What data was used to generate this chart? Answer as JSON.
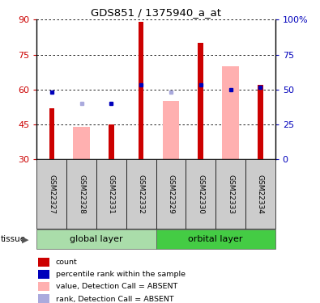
{
  "title": "GDS851 / 1375940_a_at",
  "samples": [
    "GSM22327",
    "GSM22328",
    "GSM22331",
    "GSM22332",
    "GSM22329",
    "GSM22330",
    "GSM22333",
    "GSM22334"
  ],
  "red_bars": [
    52,
    null,
    45,
    89,
    null,
    80,
    null,
    62
  ],
  "pink_bars": [
    null,
    44,
    null,
    null,
    55,
    null,
    70,
    null
  ],
  "blue_squares": [
    59,
    null,
    54,
    62,
    null,
    62,
    60,
    61
  ],
  "lavender_squares": [
    null,
    54,
    null,
    null,
    59,
    null,
    null,
    null
  ],
  "ylim": [
    30,
    90
  ],
  "yticks_left": [
    30,
    45,
    60,
    75,
    90
  ],
  "yticks_right": [
    0,
    25,
    50,
    75,
    100
  ],
  "red_color": "#cc0000",
  "pink_color": "#ffb0b0",
  "blue_color": "#0000bb",
  "lavender_color": "#aaaadd",
  "sample_bg": "#cccccc",
  "global_color": "#aaddaa",
  "orbital_color": "#44cc44",
  "legend_items": [
    {
      "color": "#cc0000",
      "marker": "s",
      "label": "count"
    },
    {
      "color": "#0000bb",
      "marker": "s",
      "label": "percentile rank within the sample"
    },
    {
      "color": "#ffb0b0",
      "marker": "s",
      "label": "value, Detection Call = ABSENT"
    },
    {
      "color": "#aaaadd",
      "marker": "s",
      "label": "rank, Detection Call = ABSENT"
    }
  ],
  "right_tick_labels": [
    "0",
    "25",
    "50",
    "75",
    "100%"
  ]
}
